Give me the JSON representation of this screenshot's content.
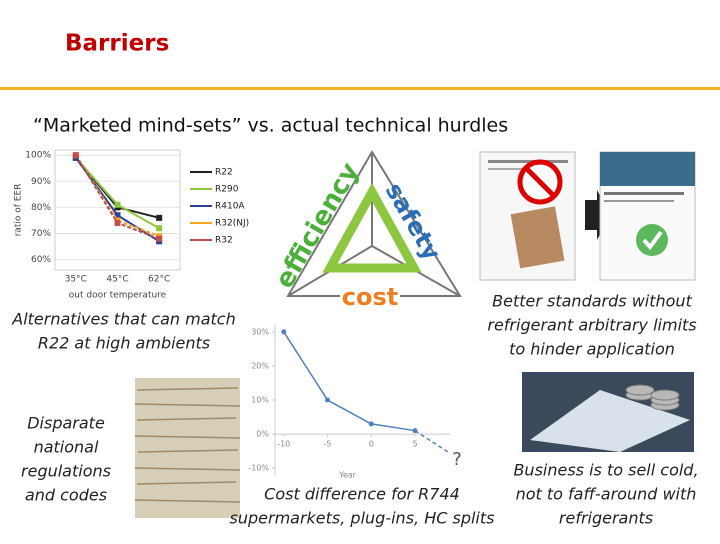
{
  "title": "Barriers",
  "subtitle": "“Marketed mind-sets” vs. actual technical hurdles",
  "triangle": {
    "left": "efficiency",
    "right": "safety",
    "bottom": "cost"
  },
  "captions": {
    "alternatives": [
      "Alternatives that can match",
      "R22 at high ambients"
    ],
    "standards": [
      "Better standards without",
      "refrigerant arbitrary limits",
      "to hinder application"
    ],
    "regulations": [
      "Disparate",
      "national",
      "regulations",
      "and codes"
    ],
    "cost": [
      "Cost difference for R744",
      "supermarkets, plug-ins, HC splits"
    ],
    "business": [
      "Business is to sell cold,",
      "not to faff-around with",
      "refrigerants"
    ]
  },
  "charts": [
    {
      "type": "line",
      "y_label": "ratio of EER",
      "x_label": "out door temperature",
      "categories": [
        "35°C",
        "45°C",
        "62°C"
      ],
      "ylim": [
        56,
        102
      ],
      "yticks": [
        {
          "value": 100,
          "label": "100%"
        },
        {
          "value": 90,
          "label": "90%"
        },
        {
          "value": 80,
          "label": "80%"
        },
        {
          "value": 70,
          "label": "70%"
        },
        {
          "value": 60,
          "label": "60%"
        }
      ],
      "series": [
        {
          "name": "R22",
          "color": "#222222",
          "values": [
            99,
            80,
            76
          ]
        },
        {
          "name": "R290",
          "color": "#8dc63f",
          "values": [
            99,
            81,
            72
          ]
        },
        {
          "name": "R410A",
          "color": "#2a3f9a",
          "values": [
            99,
            77,
            67
          ]
        },
        {
          "name": "R32(NJ)",
          "color": "#f5a623",
          "values": [
            100,
            75,
            69
          ]
        },
        {
          "name": "R32",
          "color": "#c0504d",
          "values": [
            100,
            74,
            68
          ]
        }
      ]
    },
    {
      "type": "scatterline",
      "x_label": "Year",
      "color": "#4f81bd",
      "x": [
        -10,
        -5,
        0,
        5
      ],
      "values": [
        30,
        10,
        3,
        1
      ],
      "xlim": [
        -11,
        9
      ],
      "xticks": [
        -10,
        -5,
        0,
        5
      ],
      "ylim": [
        -12,
        32
      ],
      "yticks": [
        {
          "value": 30,
          "label": "30%"
        },
        {
          "value": 20,
          "label": "20%"
        },
        {
          "value": 10,
          "label": "10%"
        },
        {
          "value": 0,
          "label": "0%"
        },
        {
          "value": -10,
          "label": "-10%"
        }
      ],
      "annotation": "?"
    }
  ]
}
